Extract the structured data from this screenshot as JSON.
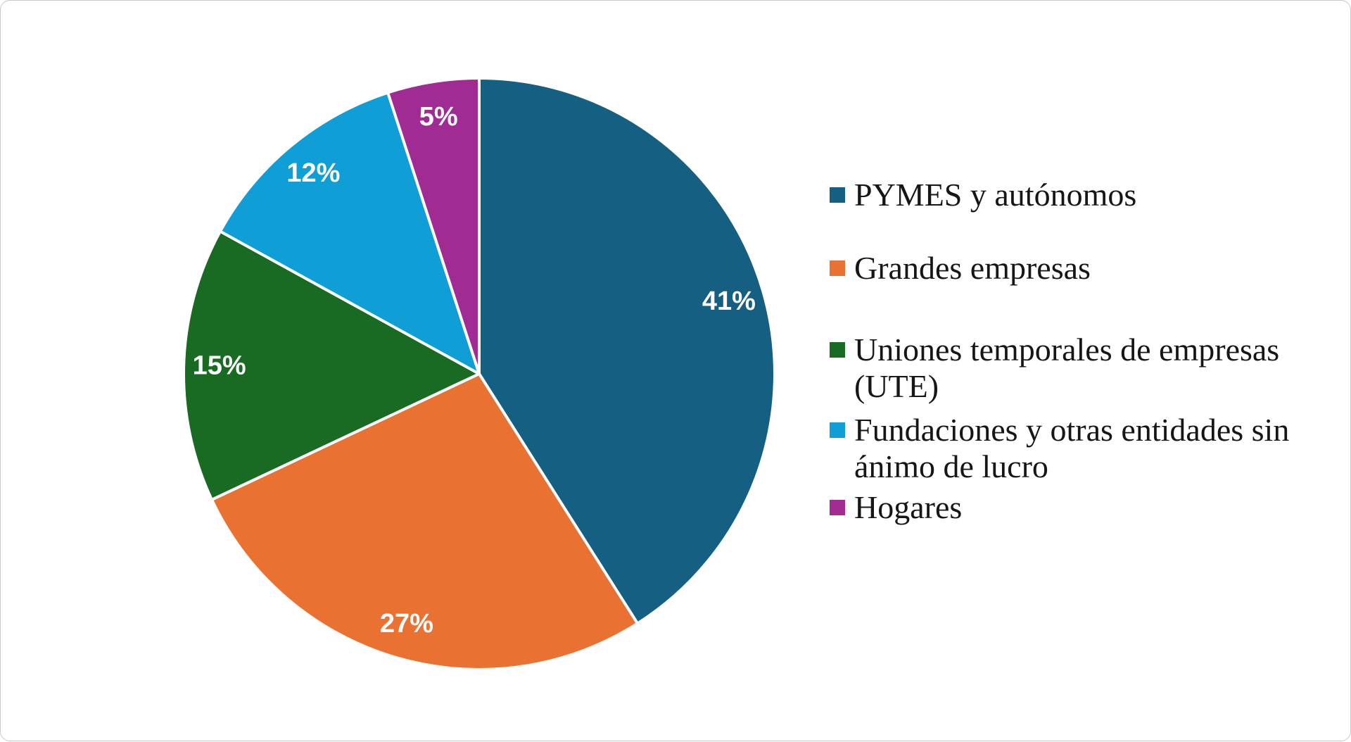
{
  "chart_data": {
    "type": "pie",
    "title": "",
    "categories": [
      "PYMES y autónomos",
      "Grandes empresas",
      "Uniones temporales de empresas (UTE)",
      "Fundaciones y otras entidades sin ánimo de lucro",
      "Hogares"
    ],
    "values": [
      41,
      27,
      15,
      12,
      5
    ],
    "value_labels": [
      "41%",
      "27%",
      "15%",
      "12%",
      "5%"
    ],
    "colors": [
      "#156082",
      "#E97132",
      "#196B24",
      "#0F9ED5",
      "#A02B93"
    ],
    "start_angle_deg": 0,
    "direction": "clockwise",
    "slice_separator_color": "#ffffff",
    "data_label_color": "#ffffff",
    "legend_position": "right",
    "background": "#ffffff"
  },
  "legend": {
    "items": [
      {
        "label": "PYMES y autónomos",
        "color": "#156082"
      },
      {
        "label": "Grandes empresas",
        "color": "#E97132"
      },
      {
        "label": "Uniones temporales de empresas (UTE)",
        "color": "#196B24"
      },
      {
        "label": "Fundaciones y otras entidades sin ánimo de lucro",
        "color": "#0F9ED5"
      },
      {
        "label": "Hogares",
        "color": "#A02B93"
      }
    ]
  }
}
